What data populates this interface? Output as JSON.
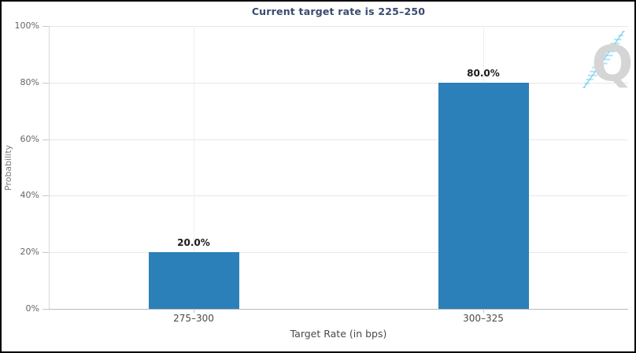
{
  "chart_data": {
    "type": "bar",
    "title": "Current target rate is 225–250",
    "categories": [
      "275–300",
      "300–325"
    ],
    "values": [
      20.0,
      80.0
    ],
    "value_labels": [
      "20.0%",
      "80.0%"
    ],
    "xlabel": "Target Rate (in bps)",
    "ylabel": "Probability",
    "ylim": [
      0,
      100
    ],
    "y_ticks": [
      0,
      20,
      40,
      60,
      80,
      100
    ],
    "y_tick_labels": [
      "0%",
      "20%",
      "40%",
      "60%",
      "80%",
      "100%"
    ],
    "grid": true,
    "legend": "none",
    "bar_color": "#2b80b9",
    "title_color": "#3a4a6e"
  },
  "watermark": {
    "letter": "Q"
  }
}
